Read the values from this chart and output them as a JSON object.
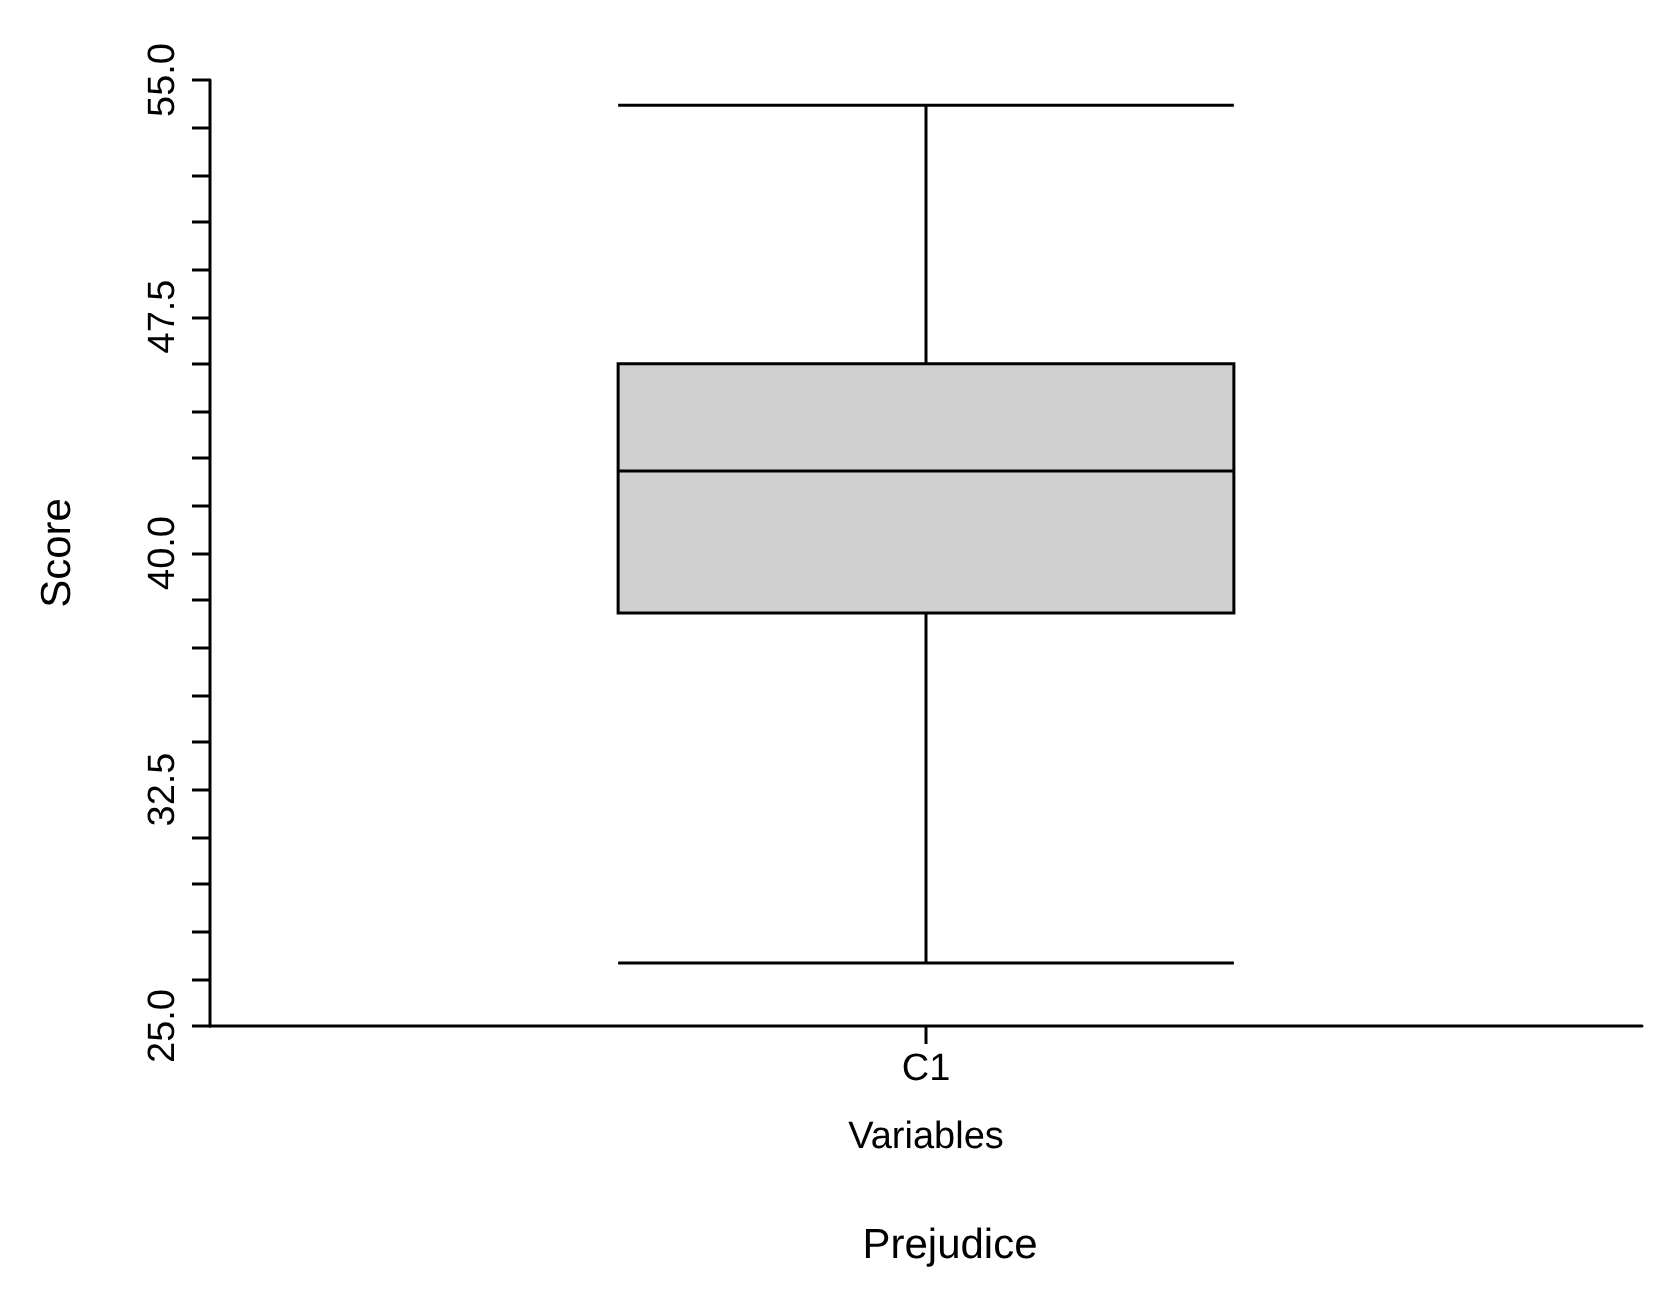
{
  "chart_data": {
    "type": "box",
    "title": "Prejudice",
    "xlabel": "Variables",
    "ylabel": "Score",
    "categories": [
      "C1"
    ],
    "boxes": [
      {
        "low": 27.0,
        "q1": 38.1,
        "median": 42.6,
        "q3": 46.0,
        "high": 54.2
      }
    ],
    "color": "#d0d0d0",
    "ylim": [
      25,
      55
    ],
    "yticks": [
      {
        "value": 25,
        "label": "25.0"
      },
      {
        "value": 26.5,
        "label": null
      },
      {
        "value": 28,
        "label": null
      },
      {
        "value": 29.5,
        "label": null
      },
      {
        "value": 31,
        "label": null
      },
      {
        "value": 32.5,
        "label": "32.5"
      },
      {
        "value": 34,
        "label": null
      },
      {
        "value": 35.5,
        "label": null
      },
      {
        "value": 37,
        "label": null
      },
      {
        "value": 38.5,
        "label": null
      },
      {
        "value": 40,
        "label": "40.0"
      },
      {
        "value": 41.5,
        "label": null
      },
      {
        "value": 43,
        "label": null
      },
      {
        "value": 44.5,
        "label": null
      },
      {
        "value": 46,
        "label": null
      },
      {
        "value": 47.5,
        "label": "47.5"
      },
      {
        "value": 49,
        "label": null
      },
      {
        "value": 50.5,
        "label": null
      },
      {
        "value": 52,
        "label": null
      },
      {
        "value": 53.5,
        "label": null
      },
      {
        "value": 55,
        "label": "55.0"
      }
    ],
    "grid": false
  }
}
